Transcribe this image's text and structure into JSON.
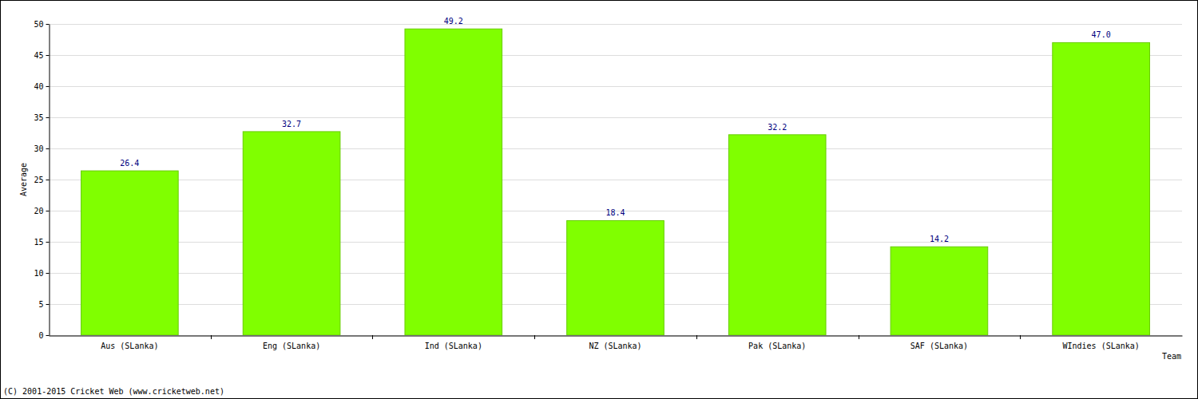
{
  "chart_data": {
    "type": "bar",
    "categories": [
      "Aus (SLanka)",
      "Eng (SLanka)",
      "Ind (SLanka)",
      "NZ (SLanka)",
      "Pak (SLanka)",
      "SAF (SLanka)",
      "WIndies (SLanka)"
    ],
    "values": [
      26.4,
      32.7,
      49.2,
      18.4,
      32.2,
      14.2,
      47.0
    ],
    "value_labels": [
      "26.4",
      "32.7",
      "49.2",
      "18.4",
      "32.2",
      "14.2",
      "47.0"
    ],
    "data_labels": true,
    "color": "#80ff00",
    "x_label": "Team",
    "y_label": "Average",
    "ylim": [
      0,
      50
    ],
    "yticks": [
      0,
      5,
      10,
      15,
      20,
      25,
      30,
      35,
      40,
      45,
      50
    ],
    "grid": true,
    "annotations": [
      "(C) 2001-2015 Cricket Web (www.cricketweb.net)"
    ]
  }
}
